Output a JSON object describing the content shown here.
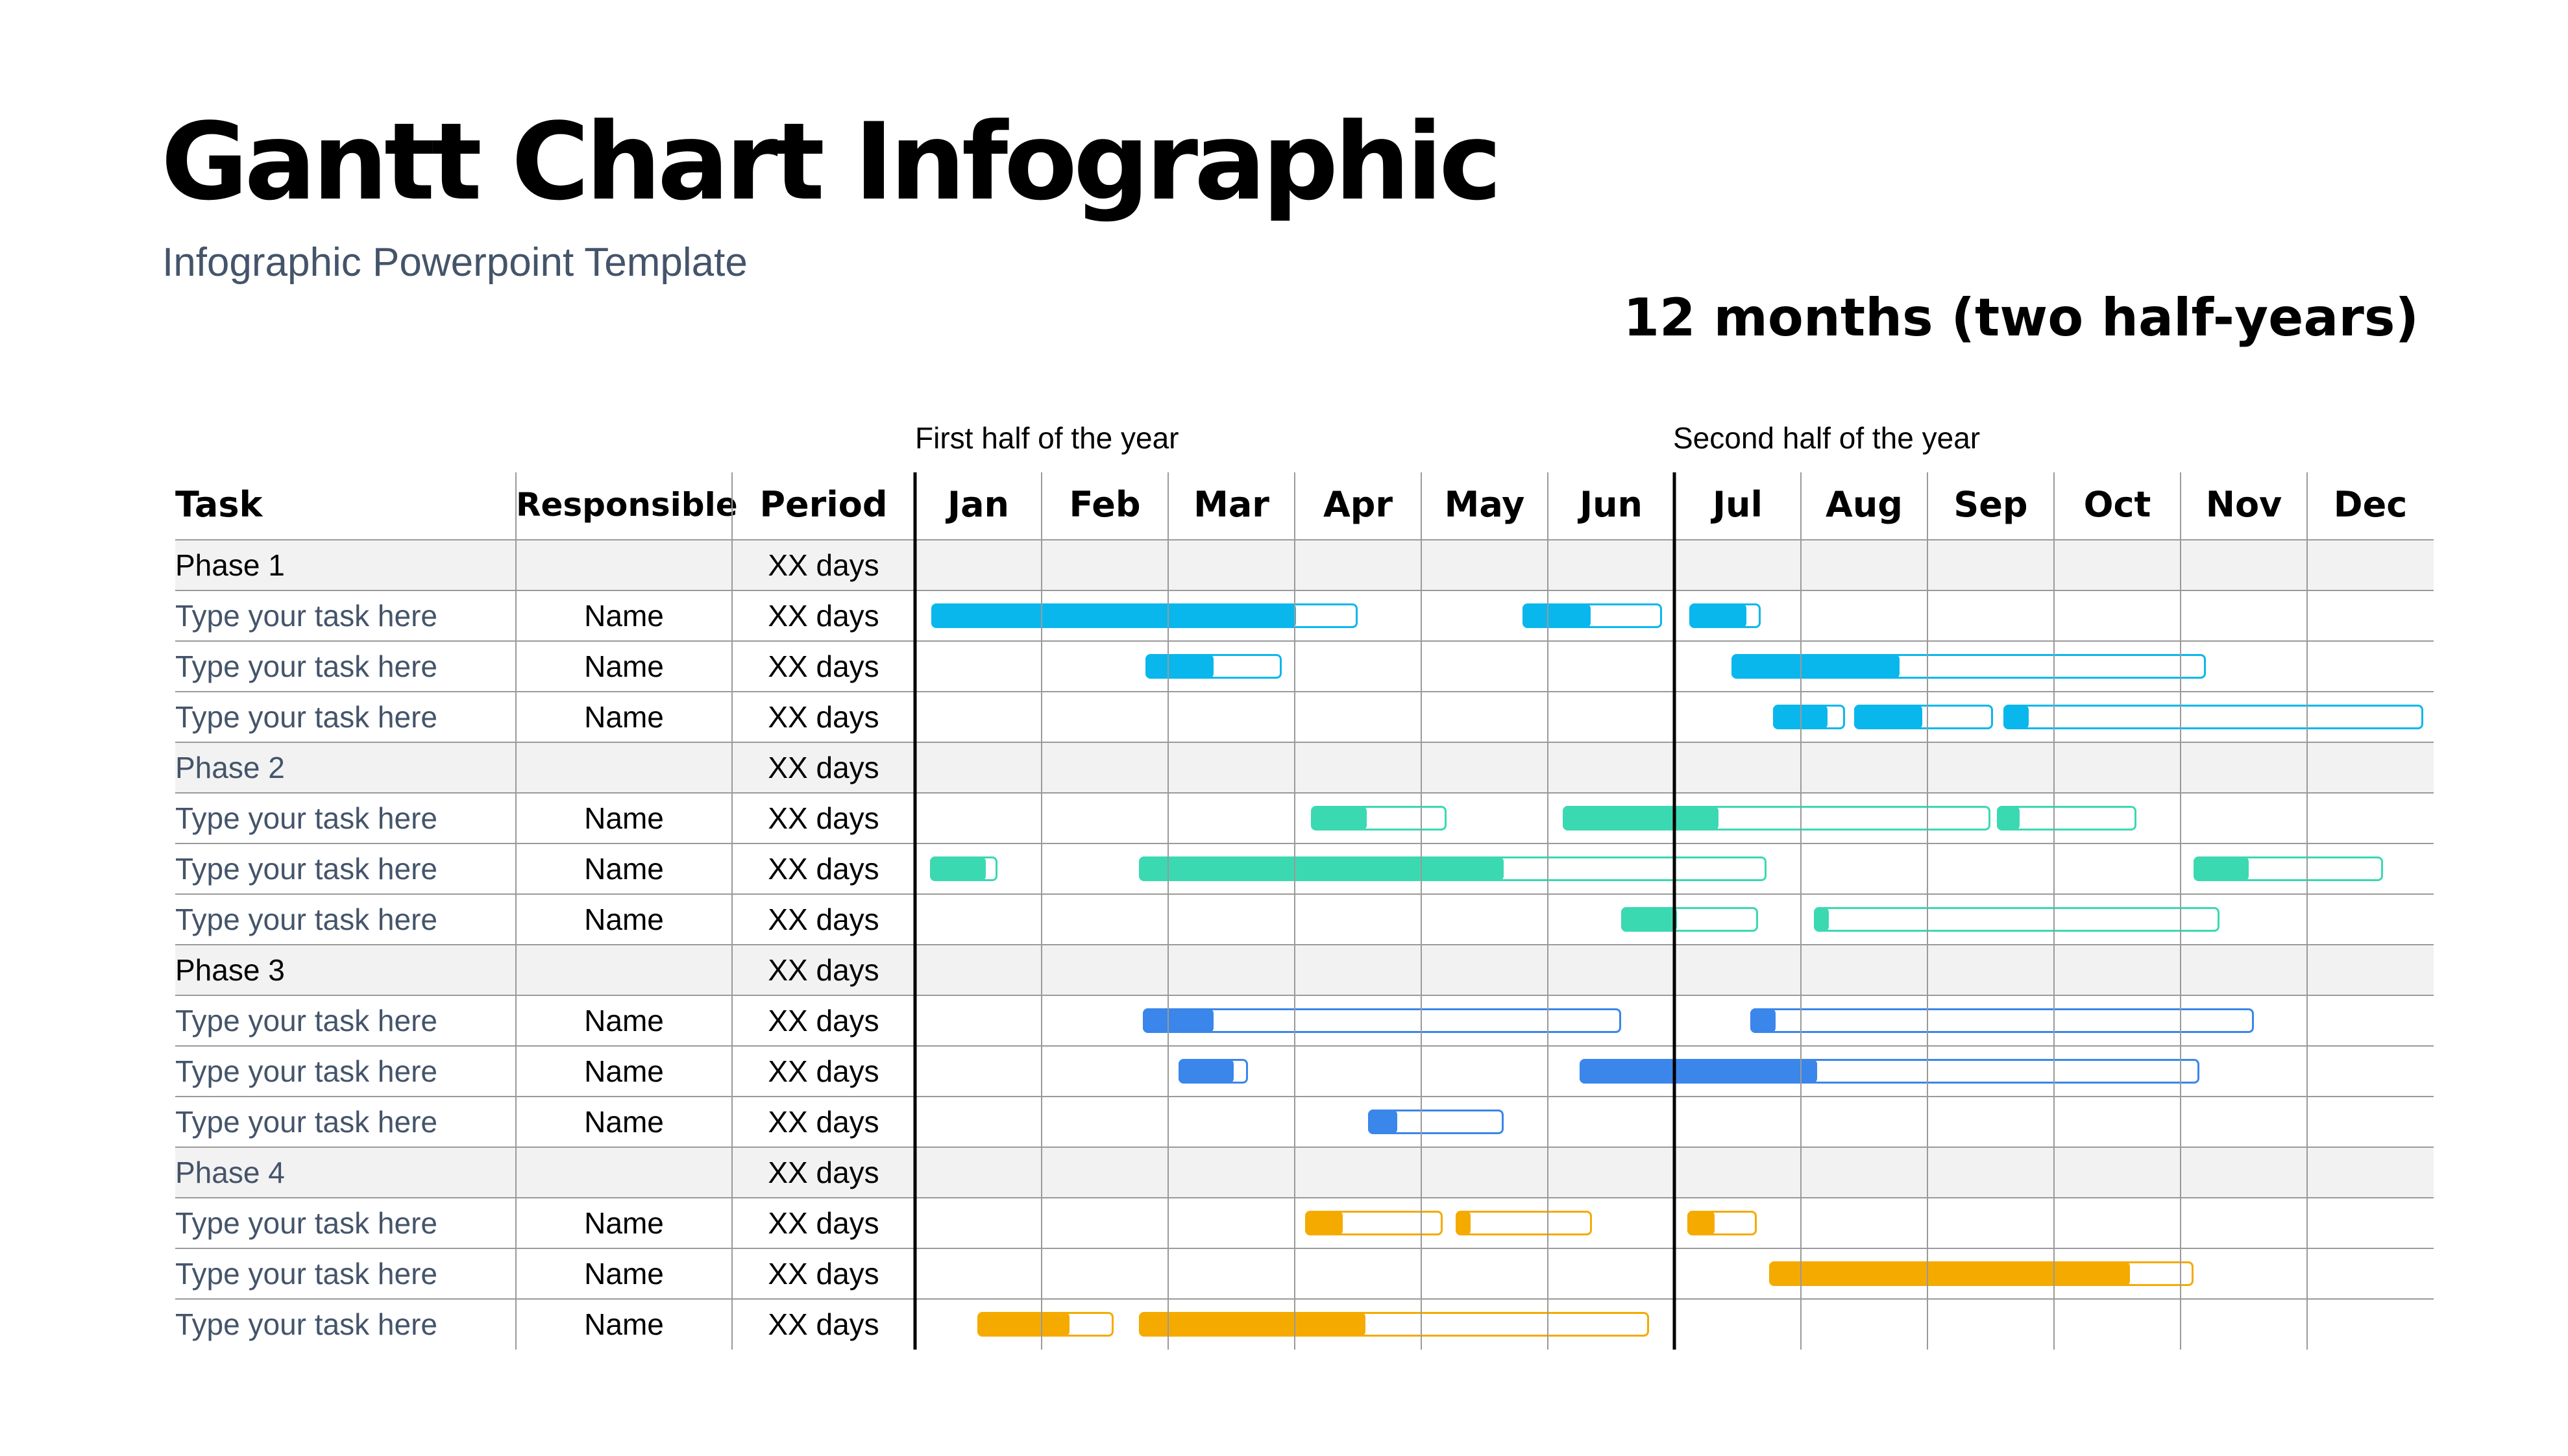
{
  "title": "Gantt Chart Infographic",
  "subtitle": "Infographic Powerpoint Template",
  "duration_label": "12 months (two half-years)",
  "chart_data": {
    "type": "gantt",
    "halves": [
      "First half of the year",
      "Second half of the year"
    ],
    "columns": {
      "task": "Task",
      "responsible": "Responsible",
      "period": "Period"
    },
    "months": [
      "Jan",
      "Feb",
      "Mar",
      "Apr",
      "May",
      "Jun",
      "Jul",
      "Aug",
      "Sep",
      "Oct",
      "Nov",
      "Dec"
    ],
    "colors": {
      "phase1": "#0ab7ec",
      "phase2": "#3bd9b1",
      "phase3": "#3a86ea",
      "phase4": "#f5aa00",
      "phase_row_bg": "#f2f2f2",
      "grid": "#9a9a9a",
      "task_text": "#44546a"
    },
    "note": "bar values in months from Jan 1 (0 = start of Jan, 12 = end of Dec); progress = completed portion in months",
    "rows": [
      {
        "kind": "phase",
        "label": "Phase 1",
        "responsible": "",
        "period": "XX days",
        "phase": 1
      },
      {
        "kind": "task",
        "label": "Type your task here",
        "responsible": "Name",
        "period": "XX days",
        "phase": 1,
        "bars": [
          {
            "start": 0.13,
            "end": 3.5,
            "progress": 2.88
          },
          {
            "start": 4.8,
            "end": 5.9,
            "progress": 0.54
          },
          {
            "start": 6.12,
            "end": 6.68,
            "progress": 0.45
          }
        ]
      },
      {
        "kind": "task",
        "label": "Type your task here",
        "responsible": "Name",
        "period": "XX days",
        "phase": 1,
        "bars": [
          {
            "start": 1.82,
            "end": 2.9,
            "progress": 0.54
          },
          {
            "start": 6.45,
            "end": 10.2,
            "progress": 1.33
          }
        ]
      },
      {
        "kind": "task",
        "label": "Type your task here",
        "responsible": "Name",
        "period": "XX days",
        "phase": 1,
        "bars": [
          {
            "start": 6.78,
            "end": 7.35,
            "progress": 0.43
          },
          {
            "start": 7.42,
            "end": 8.52,
            "progress": 0.54
          },
          {
            "start": 8.6,
            "end": 11.92,
            "progress": 0.2
          }
        ]
      },
      {
        "kind": "phase",
        "label": "Phase 2",
        "responsible": "",
        "period": "XX days",
        "phase": 2
      },
      {
        "kind": "task",
        "label": "Type your task here",
        "responsible": "Name",
        "period": "XX days",
        "phase": 2,
        "bars": [
          {
            "start": 3.13,
            "end": 4.2,
            "progress": 0.44
          },
          {
            "start": 5.12,
            "end": 8.5,
            "progress": 1.23
          },
          {
            "start": 8.55,
            "end": 9.65,
            "progress": 0.18
          }
        ]
      },
      {
        "kind": "task",
        "label": "Type your task here",
        "responsible": "Name",
        "period": "XX days",
        "phase": 2,
        "bars": [
          {
            "start": 0.12,
            "end": 0.65,
            "progress": 0.44
          },
          {
            "start": 1.77,
            "end": 6.73,
            "progress": 2.88
          },
          {
            "start": 10.1,
            "end": 11.6,
            "progress": 0.44
          }
        ]
      },
      {
        "kind": "task",
        "label": "Type your task here",
        "responsible": "Name",
        "period": "XX days",
        "phase": 2,
        "bars": [
          {
            "start": 5.58,
            "end": 6.66,
            "progress": 0.44
          },
          {
            "start": 7.1,
            "end": 10.31,
            "progress": 0.12
          }
        ]
      },
      {
        "kind": "phase",
        "label": "Phase 3",
        "responsible": "",
        "period": "XX days",
        "phase": 3
      },
      {
        "kind": "task",
        "label": "Type your task here",
        "responsible": "Name",
        "period": "XX days",
        "phase": 3,
        "bars": [
          {
            "start": 1.8,
            "end": 5.58,
            "progress": 0.56
          },
          {
            "start": 6.6,
            "end": 10.58,
            "progress": 0.2
          }
        ]
      },
      {
        "kind": "task",
        "label": "Type your task here",
        "responsible": "Name",
        "period": "XX days",
        "phase": 3,
        "bars": [
          {
            "start": 2.08,
            "end": 2.63,
            "progress": 0.44
          },
          {
            "start": 5.25,
            "end": 10.15,
            "progress": 1.88
          }
        ]
      },
      {
        "kind": "task",
        "label": "Type your task here",
        "responsible": "Name",
        "period": "XX days",
        "phase": 3,
        "bars": [
          {
            "start": 3.58,
            "end": 4.65,
            "progress": 0.23
          }
        ]
      },
      {
        "kind": "phase",
        "label": "Phase 4",
        "responsible": "",
        "period": "XX days",
        "phase": 4
      },
      {
        "kind": "task",
        "label": "Type your task here",
        "responsible": "Name",
        "period": "XX days",
        "phase": 4,
        "bars": [
          {
            "start": 3.08,
            "end": 4.17,
            "progress": 0.3
          },
          {
            "start": 4.27,
            "end": 5.35,
            "progress": 0.12
          },
          {
            "start": 6.1,
            "end": 6.65,
            "progress": 0.22
          }
        ]
      },
      {
        "kind": "task",
        "label": "Type your task here",
        "responsible": "Name",
        "period": "XX days",
        "phase": 4,
        "bars": [
          {
            "start": 6.75,
            "end": 10.1,
            "progress": 2.85
          }
        ]
      },
      {
        "kind": "task",
        "label": "Type your task here",
        "responsible": "Name",
        "period": "XX days",
        "phase": 4,
        "bars": [
          {
            "start": 0.49,
            "end": 1.57,
            "progress": 0.73
          },
          {
            "start": 1.77,
            "end": 5.8,
            "progress": 1.79
          }
        ]
      }
    ]
  }
}
